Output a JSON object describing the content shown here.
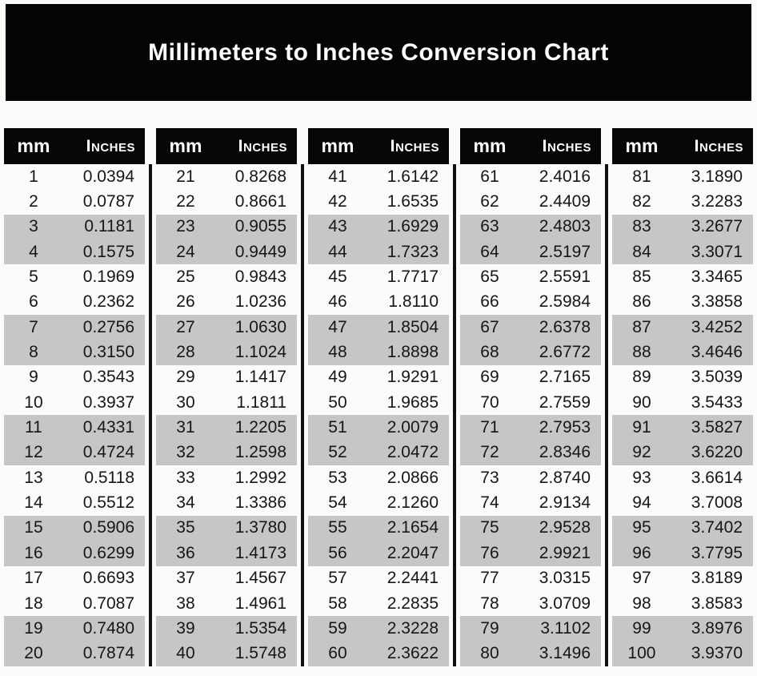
{
  "title": "Millimeters to Inches Conversion Chart",
  "table": {
    "headers": {
      "mm": "mm",
      "inches": "Inches"
    },
    "blocks_count": 5,
    "rows_per_block": 20
  },
  "colors": {
    "title_bar_bg": "#040404",
    "header_bg": "#070707",
    "header_text": "#ffffff",
    "row_shaded_bg": "#c6c6c6",
    "row_text": "#161616",
    "divider": "#101010",
    "page_bg": "#fbfbfa"
  },
  "chart_data": {
    "type": "table",
    "title": "Millimeters to Inches Conversion Chart",
    "columns": [
      "mm",
      "Inches"
    ],
    "layout": "5 column-blocks of 20 rows, row pairs alternately shaded",
    "rows": [
      [
        1,
        0.0394
      ],
      [
        2,
        0.0787
      ],
      [
        3,
        0.1181
      ],
      [
        4,
        0.1575
      ],
      [
        5,
        0.1969
      ],
      [
        6,
        0.2362
      ],
      [
        7,
        0.2756
      ],
      [
        8,
        0.315
      ],
      [
        9,
        0.3543
      ],
      [
        10,
        0.3937
      ],
      [
        11,
        0.4331
      ],
      [
        12,
        0.4724
      ],
      [
        13,
        0.5118
      ],
      [
        14,
        0.5512
      ],
      [
        15,
        0.5906
      ],
      [
        16,
        0.6299
      ],
      [
        17,
        0.6693
      ],
      [
        18,
        0.7087
      ],
      [
        19,
        0.748
      ],
      [
        20,
        0.7874
      ],
      [
        21,
        0.8268
      ],
      [
        22,
        0.8661
      ],
      [
        23,
        0.9055
      ],
      [
        24,
        0.9449
      ],
      [
        25,
        0.9843
      ],
      [
        26,
        1.0236
      ],
      [
        27,
        1.063
      ],
      [
        28,
        1.1024
      ],
      [
        29,
        1.1417
      ],
      [
        30,
        1.1811
      ],
      [
        31,
        1.2205
      ],
      [
        32,
        1.2598
      ],
      [
        33,
        1.2992
      ],
      [
        34,
        1.3386
      ],
      [
        35,
        1.378
      ],
      [
        36,
        1.4173
      ],
      [
        37,
        1.4567
      ],
      [
        38,
        1.4961
      ],
      [
        39,
        1.5354
      ],
      [
        40,
        1.5748
      ],
      [
        41,
        1.6142
      ],
      [
        42,
        1.6535
      ],
      [
        43,
        1.6929
      ],
      [
        44,
        1.7323
      ],
      [
        45,
        1.7717
      ],
      [
        46,
        1.811
      ],
      [
        47,
        1.8504
      ],
      [
        48,
        1.8898
      ],
      [
        49,
        1.9291
      ],
      [
        50,
        1.9685
      ],
      [
        51,
        2.0079
      ],
      [
        52,
        2.0472
      ],
      [
        53,
        2.0866
      ],
      [
        54,
        2.126
      ],
      [
        55,
        2.1654
      ],
      [
        56,
        2.2047
      ],
      [
        57,
        2.2441
      ],
      [
        58,
        2.2835
      ],
      [
        59,
        2.3228
      ],
      [
        60,
        2.3622
      ],
      [
        61,
        2.4016
      ],
      [
        62,
        2.4409
      ],
      [
        63,
        2.4803
      ],
      [
        64,
        2.5197
      ],
      [
        65,
        2.5591
      ],
      [
        66,
        2.5984
      ],
      [
        67,
        2.6378
      ],
      [
        68,
        2.6772
      ],
      [
        69,
        2.7165
      ],
      [
        70,
        2.7559
      ],
      [
        71,
        2.7953
      ],
      [
        72,
        2.8346
      ],
      [
        73,
        2.874
      ],
      [
        74,
        2.9134
      ],
      [
        75,
        2.9528
      ],
      [
        76,
        2.9921
      ],
      [
        77,
        3.0315
      ],
      [
        78,
        3.0709
      ],
      [
        79,
        3.1102
      ],
      [
        80,
        3.1496
      ],
      [
        81,
        3.189
      ],
      [
        82,
        3.2283
      ],
      [
        83,
        3.2677
      ],
      [
        84,
        3.3071
      ],
      [
        85,
        3.3465
      ],
      [
        86,
        3.3858
      ],
      [
        87,
        3.4252
      ],
      [
        88,
        3.4646
      ],
      [
        89,
        3.5039
      ],
      [
        90,
        3.5433
      ],
      [
        91,
        3.5827
      ],
      [
        92,
        3.622
      ],
      [
        93,
        3.6614
      ],
      [
        94,
        3.7008
      ],
      [
        95,
        3.7402
      ],
      [
        96,
        3.7795
      ],
      [
        97,
        3.8189
      ],
      [
        98,
        3.8583
      ],
      [
        99,
        3.8976
      ],
      [
        100,
        3.937
      ]
    ]
  }
}
